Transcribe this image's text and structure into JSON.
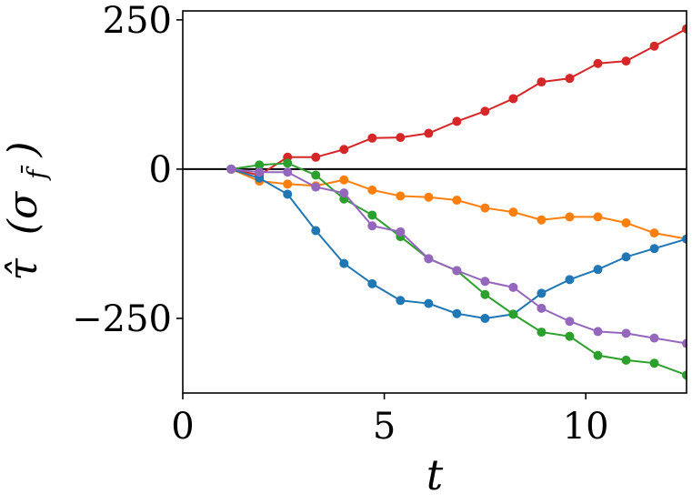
{
  "chart_data": {
    "type": "line",
    "title": "",
    "xlabel": "t",
    "ylabel_symbol": "τ̂",
    "ylabel_unit": "(σ",
    "ylabel_unit_sub": "f̄",
    "ylabel_close": ")",
    "xlim": [
      0,
      12.5
    ],
    "ylim": [
      -375,
      265
    ],
    "xticks": [
      0,
      5,
      10
    ],
    "xtick_labels": [
      "0",
      "5",
      "10"
    ],
    "yticks": [
      250,
      0,
      -250
    ],
    "ytick_labels": [
      "250",
      "0",
      "−250"
    ],
    "zero_line": true,
    "grid": false,
    "legend": "none",
    "x": [
      1.2,
      1.9,
      2.6,
      3.3,
      4.0,
      4.7,
      5.4,
      6.1,
      6.8,
      7.5,
      8.2,
      8.9,
      9.6,
      10.3,
      11.0,
      11.7,
      12.5
    ],
    "series": [
      {
        "color": "#d62728",
        "values": [
          0,
          -10,
          20,
          20,
          33,
          52,
          53,
          60,
          80,
          97,
          118,
          146,
          152,
          177,
          181,
          206,
          235
        ]
      },
      {
        "color": "#ff7f0e",
        "values": [
          0,
          -20,
          -25,
          -28,
          -18,
          -35,
          -45,
          -47,
          -52,
          -65,
          -72,
          -85,
          -80,
          -80,
          -90,
          -107,
          -117
        ]
      },
      {
        "color": "#1f77b4",
        "values": [
          0,
          -15,
          -42,
          -103,
          -158,
          -192,
          -220,
          -225,
          -242,
          -250,
          -243,
          -208,
          -185,
          -168,
          -147,
          -133,
          -117
        ]
      },
      {
        "color": "#2ca02c",
        "values": [
          0,
          7,
          10,
          -10,
          -50,
          -77,
          -113,
          -150,
          -170,
          -210,
          -243,
          -273,
          -280,
          -312,
          -320,
          -325,
          -345
        ]
      },
      {
        "color": "#9467bd",
        "values": [
          0,
          -5,
          -5,
          -30,
          -40,
          -95,
          -105,
          -150,
          -170,
          -188,
          -198,
          -233,
          -255,
          -272,
          -275,
          -283,
          -292
        ]
      }
    ]
  }
}
